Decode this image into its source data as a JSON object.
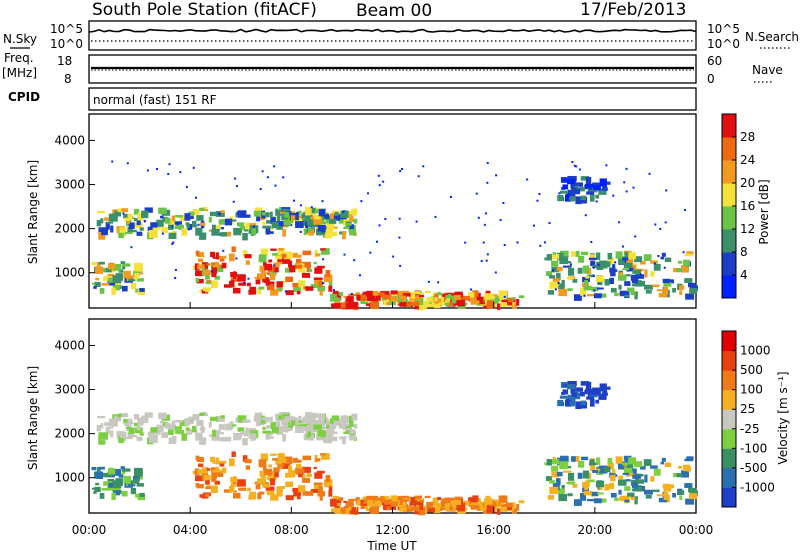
{
  "header": {
    "station": "South Pole Station (fitACF)",
    "beam": "Beam 00",
    "date": "17/Feb/2013"
  },
  "top_panels": {
    "nsky_label": "N.Sky",
    "nsky_ticks": [
      "10^5",
      "10^0"
    ],
    "nsearch_label": "N.Search",
    "nsearch_ticks": [
      "10^5",
      "10^0"
    ],
    "freq_label_line1": "Freq.",
    "freq_label_line2": "[MHz]",
    "freq_ticks": [
      "18",
      "8"
    ],
    "nave_label": "Nave",
    "nave_ticks": [
      "60",
      "0"
    ],
    "cpid_label": "CPID",
    "cpid_value": "normal (fast) 151 RF"
  },
  "chart_data": [
    {
      "type": "heatmap",
      "name": "power",
      "ylabel": "Slant Range [km]",
      "yticks": [
        "4000",
        "3000",
        "2000",
        "1000"
      ],
      "ylim": [
        200,
        4600
      ],
      "colorbar_label": "Power [dB]",
      "colorbar_ticks": [
        "28",
        "24",
        "20",
        "16",
        "12",
        "8",
        "4"
      ],
      "colorbar_colors": [
        "#0020ff",
        "#1a3ec4",
        "#3b8f6a",
        "#6bc34a",
        "#f4e23a",
        "#f29a20",
        "#ee6a10",
        "#e01010"
      ],
      "echo_bands": [
        {
          "t_start": 0.1,
          "t_end": 2.0,
          "r_min": 600,
          "r_max": 1300,
          "level": "mid"
        },
        {
          "t_start": 0.3,
          "t_end": 10.5,
          "r_min": 1900,
          "r_max": 2500,
          "level": "mid"
        },
        {
          "t_start": 4.0,
          "t_end": 9.5,
          "r_min": 600,
          "r_max": 1600,
          "level": "high"
        },
        {
          "t_start": 9.5,
          "t_end": 17.0,
          "r_min": 300,
          "r_max": 600,
          "level": "high"
        },
        {
          "t_start": 18.0,
          "t_end": 23.8,
          "r_min": 500,
          "r_max": 1500,
          "level": "mid"
        },
        {
          "t_start": 18.5,
          "t_end": 20.3,
          "r_min": 2700,
          "r_max": 3200,
          "level": "low"
        }
      ]
    },
    {
      "type": "heatmap",
      "name": "velocity",
      "ylabel": "Slant Range [km]",
      "yticks": [
        "4000",
        "3000",
        "2000",
        "1000"
      ],
      "ylim": [
        200,
        4600
      ],
      "xlabel": "Time UT",
      "xticks": [
        "00:00",
        "04:00",
        "08:00",
        "12:00",
        "16:00",
        "20:00",
        "00:00"
      ],
      "colorbar_label": "Velocity [m s⁻¹]",
      "colorbar_ticks": [
        "1000",
        "500",
        "100",
        "25",
        "-25",
        "-100",
        "-500",
        "-1000"
      ],
      "colorbar_colors": [
        "#1e40c8",
        "#2a6fb0",
        "#3a8f64",
        "#7cd040",
        "#c8c8c0",
        "#f5b020",
        "#ee7a18",
        "#e84010",
        "#e00000"
      ]
    }
  ]
}
